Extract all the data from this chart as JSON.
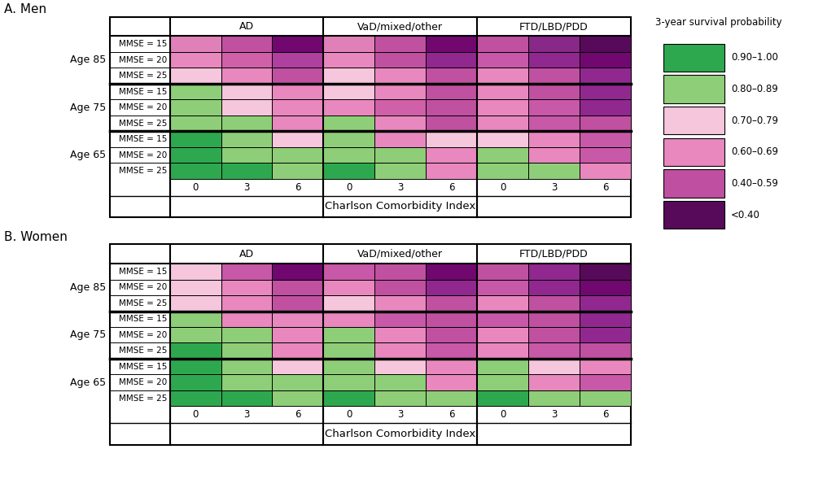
{
  "legend_title": "3-year survival probability",
  "legend_categories": [
    "0.90–1.00",
    "0.80–0.89",
    "0.70–0.79",
    "0.60–0.69",
    "0.40–0.59",
    "<0.40"
  ],
  "legend_colors": [
    "#2ea84f",
    "#8fce78",
    "#f5c6dc",
    "#e888be",
    "#bf4fa0",
    "#570a5a"
  ],
  "col_headers": [
    "AD",
    "VaD/mixed/other",
    "FTD/LBD/PDD"
  ],
  "row_groups": [
    "Age 85",
    "Age 75",
    "Age 65"
  ],
  "mmse_labels": [
    "MMSE = 15",
    "MMSE = 20",
    "MMSE = 25"
  ],
  "cci_labels": [
    "0",
    "3",
    "6"
  ],
  "panel_titles": [
    "A. Men",
    "B. Women"
  ],
  "xlabel": "Charlson Comorbidity Index",
  "men_data": [
    [
      "#e080b8",
      "#c050a0",
      "#700870",
      "#e080b8",
      "#c050a0",
      "#700870",
      "#c050a0",
      "#882888",
      "#570a5a"
    ],
    [
      "#e888be",
      "#d060a8",
      "#b040a0",
      "#e888be",
      "#c050a0",
      "#902890",
      "#c858a8",
      "#902890",
      "#700870"
    ],
    [
      "#f5c6dc",
      "#e888be",
      "#c050a0",
      "#f5c6dc",
      "#e888be",
      "#c050a0",
      "#e888be",
      "#c050a0",
      "#902890"
    ],
    [
      "#8fce78",
      "#f5c6dc",
      "#e888be",
      "#f5c6dc",
      "#e888be",
      "#c050a0",
      "#e888be",
      "#c050a0",
      "#902890"
    ],
    [
      "#8fce78",
      "#f5c6dc",
      "#e888be",
      "#e888be",
      "#d060a8",
      "#c050a0",
      "#e888be",
      "#c858a8",
      "#902890"
    ],
    [
      "#8fce78",
      "#8fce78",
      "#e888be",
      "#8fce78",
      "#e888be",
      "#c050a0",
      "#e888be",
      "#c858a8",
      "#c050a0"
    ],
    [
      "#2ea84f",
      "#8fce78",
      "#f5c6dc",
      "#8fce78",
      "#e888be",
      "#f5c6dc",
      "#f5c6dc",
      "#e888be",
      "#c858a8"
    ],
    [
      "#2ea84f",
      "#8fce78",
      "#8fce78",
      "#8fce78",
      "#8fce78",
      "#e888be",
      "#8fce78",
      "#e888be",
      "#c858a8"
    ],
    [
      "#2ea84f",
      "#2ea84f",
      "#8fce78",
      "#2ea84f",
      "#8fce78",
      "#e888be",
      "#8fce78",
      "#8fce78",
      "#e888be"
    ]
  ],
  "women_data": [
    [
      "#f5c6dc",
      "#c858a8",
      "#700870",
      "#c858a8",
      "#c050a0",
      "#700870",
      "#c050a0",
      "#902890",
      "#570a5a"
    ],
    [
      "#f5c6dc",
      "#e888be",
      "#c050a0",
      "#e888be",
      "#c050a0",
      "#902890",
      "#c858a8",
      "#902890",
      "#700870"
    ],
    [
      "#f5c6dc",
      "#e888be",
      "#c050a0",
      "#f5c6dc",
      "#e888be",
      "#c050a0",
      "#e888be",
      "#c050a0",
      "#902890"
    ],
    [
      "#8fce78",
      "#e888be",
      "#e888be",
      "#e888be",
      "#c858a8",
      "#c050a0",
      "#c858a8",
      "#c050a0",
      "#902890"
    ],
    [
      "#8fce78",
      "#8fce78",
      "#e888be",
      "#8fce78",
      "#e888be",
      "#c050a0",
      "#e888be",
      "#c050a0",
      "#902890"
    ],
    [
      "#2ea84f",
      "#8fce78",
      "#e888be",
      "#8fce78",
      "#e888be",
      "#c858a8",
      "#e888be",
      "#c858a8",
      "#c050a0"
    ],
    [
      "#2ea84f",
      "#8fce78",
      "#f5c6dc",
      "#8fce78",
      "#f5c6dc",
      "#e888be",
      "#8fce78",
      "#f5c6dc",
      "#e888be"
    ],
    [
      "#2ea84f",
      "#8fce78",
      "#8fce78",
      "#8fce78",
      "#8fce78",
      "#e888be",
      "#8fce78",
      "#e888be",
      "#c858a8"
    ],
    [
      "#2ea84f",
      "#2ea84f",
      "#8fce78",
      "#2ea84f",
      "#8fce78",
      "#8fce78",
      "#2ea84f",
      "#8fce78",
      "#8fce78"
    ]
  ]
}
